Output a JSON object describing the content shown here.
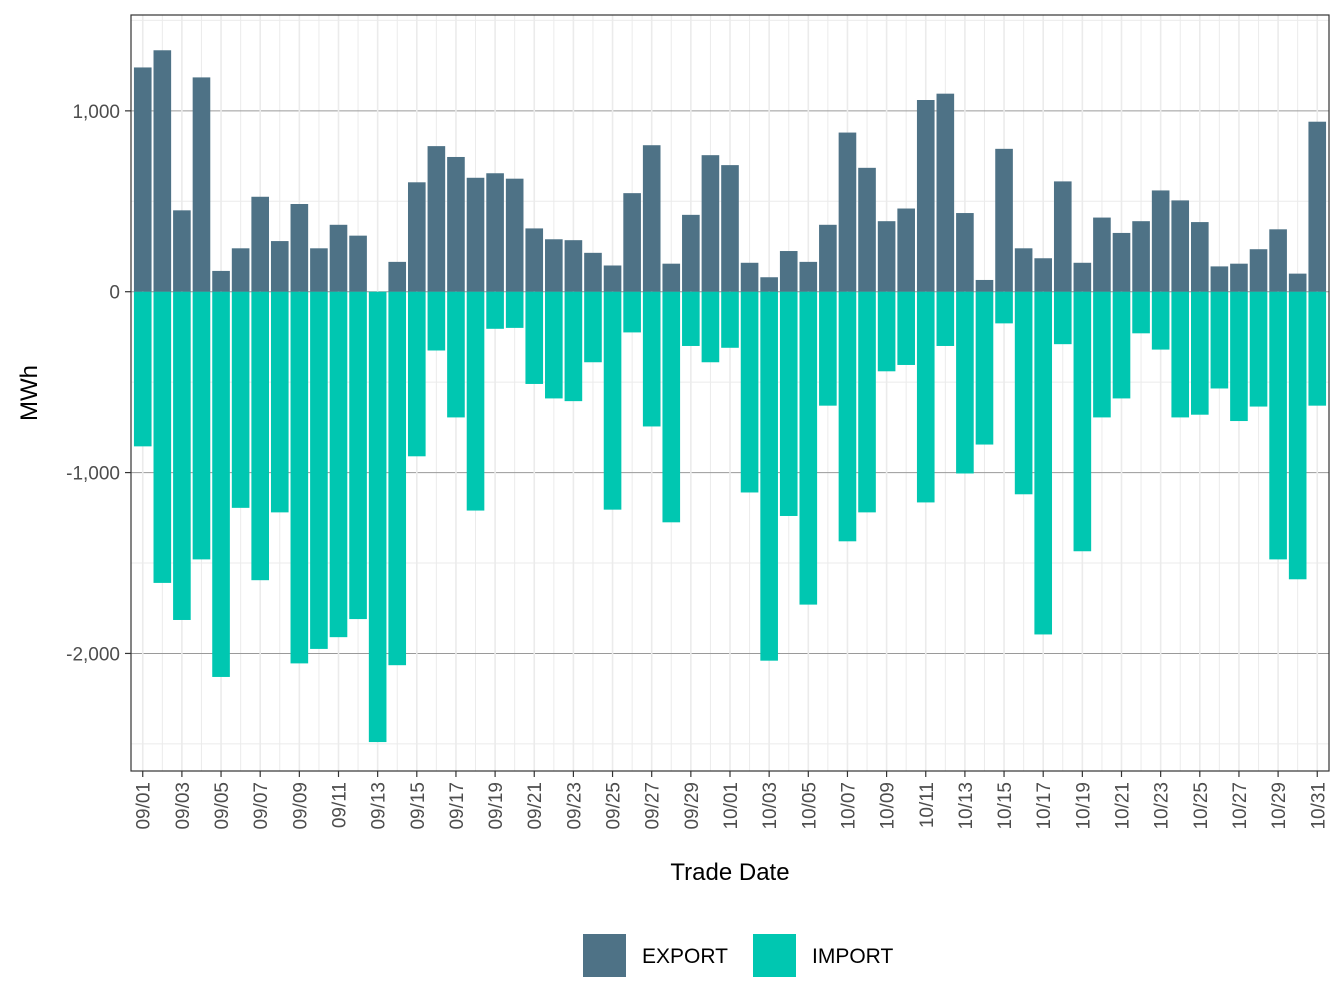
{
  "chart_data": {
    "type": "bar",
    "stacked": "diverging",
    "xlabel": "Trade Date",
    "ylabel": "MWh",
    "ylim": [
      -2650,
      1530
    ],
    "yticks": [
      -2000,
      -1000,
      0,
      1000
    ],
    "ytick_labels": [
      "-2,000",
      "-1,000",
      "0",
      "1,000"
    ],
    "grid": true,
    "legend_position": "bottom",
    "categories": [
      "09/01",
      "09/02",
      "09/03",
      "09/04",
      "09/05",
      "09/06",
      "09/07",
      "09/08",
      "09/09",
      "09/10",
      "09/11",
      "09/12",
      "09/13",
      "09/14",
      "09/15",
      "09/16",
      "09/17",
      "09/18",
      "09/19",
      "09/20",
      "09/21",
      "09/22",
      "09/23",
      "09/24",
      "09/25",
      "09/26",
      "09/27",
      "09/28",
      "09/29",
      "09/30",
      "10/01",
      "10/02",
      "10/03",
      "10/04",
      "10/05",
      "10/06",
      "10/07",
      "10/08",
      "10/09",
      "10/10",
      "10/11",
      "10/12",
      "10/13",
      "10/14",
      "10/15",
      "10/16",
      "10/17",
      "10/18",
      "10/19",
      "10/20",
      "10/21",
      "10/22",
      "10/23",
      "10/24",
      "10/25",
      "10/26",
      "10/27",
      "10/28",
      "10/29",
      "10/30",
      "10/31"
    ],
    "tick_labels": [
      "09/01",
      "09/03",
      "09/05",
      "09/07",
      "09/09",
      "09/11",
      "09/13",
      "09/15",
      "09/17",
      "09/19",
      "09/21",
      "09/23",
      "09/25",
      "09/27",
      "09/29",
      "10/01",
      "10/03",
      "10/05",
      "10/07",
      "10/09",
      "10/11",
      "10/13",
      "10/15",
      "10/17",
      "10/19",
      "10/21",
      "10/23",
      "10/25",
      "10/27",
      "10/29",
      "10/31"
    ],
    "series": [
      {
        "name": "EXPORT",
        "color": "#4E7286",
        "values": [
          1240,
          1335,
          450,
          1185,
          115,
          240,
          525,
          280,
          485,
          240,
          370,
          310,
          0,
          165,
          605,
          805,
          745,
          630,
          655,
          625,
          350,
          290,
          285,
          215,
          145,
          545,
          810,
          155,
          425,
          755,
          700,
          160,
          80,
          225,
          165,
          370,
          880,
          685,
          390,
          460,
          1060,
          1095,
          435,
          65,
          790,
          240,
          185,
          610,
          160,
          410,
          325,
          390,
          560,
          505,
          385,
          140,
          155,
          235,
          345,
          100,
          940
        ]
      },
      {
        "name": "IMPORT",
        "color": "#00C7B1",
        "values": [
          -855,
          -1610,
          -1815,
          -1480,
          -2130,
          -1195,
          -1595,
          -1220,
          -2055,
          -1975,
          -1910,
          -1810,
          -2490,
          -2065,
          -910,
          -325,
          -695,
          -1210,
          -205,
          -200,
          -510,
          -590,
          -605,
          -390,
          -1205,
          -225,
          -745,
          -1275,
          -300,
          -390,
          -310,
          -1110,
          -2040,
          -1240,
          -1730,
          -630,
          -1380,
          -1220,
          -440,
          -405,
          -1165,
          -300,
          -1005,
          -845,
          -175,
          -1120,
          -1895,
          -290,
          -1435,
          -695,
          -590,
          -230,
          -320,
          -695,
          -680,
          -535,
          -715,
          -635,
          -1480,
          -1590,
          -630
        ]
      }
    ]
  }
}
